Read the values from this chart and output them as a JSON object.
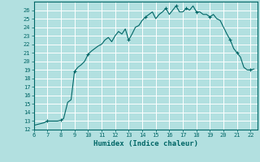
{
  "title": "",
  "xlabel": "Humidex (Indice chaleur)",
  "ylabel": "",
  "bg_color": "#b2e0e0",
  "grid_color": "#ffffff",
  "line_color": "#006666",
  "marker_color": "#006666",
  "xlim": [
    6,
    22.5
  ],
  "ylim": [
    12,
    27
  ],
  "xticks": [
    6,
    7,
    8,
    9,
    10,
    11,
    12,
    13,
    14,
    15,
    16,
    17,
    18,
    19,
    20,
    21,
    22
  ],
  "yticks": [
    12,
    13,
    14,
    15,
    16,
    17,
    18,
    19,
    20,
    21,
    22,
    23,
    24,
    25,
    26
  ],
  "x": [
    6.0,
    6.25,
    6.5,
    6.75,
    7.0,
    7.25,
    7.5,
    7.75,
    8.0,
    8.2,
    8.5,
    8.75,
    9.0,
    9.25,
    9.5,
    9.75,
    10.0,
    10.25,
    10.5,
    10.75,
    11.0,
    11.25,
    11.5,
    11.75,
    12.0,
    12.25,
    12.5,
    12.75,
    13.0,
    13.25,
    13.5,
    13.75,
    14.0,
    14.25,
    14.5,
    14.75,
    15.0,
    15.25,
    15.5,
    15.75,
    16.0,
    16.25,
    16.5,
    16.75,
    17.0,
    17.25,
    17.5,
    17.75,
    18.0,
    18.25,
    18.5,
    18.75,
    19.0,
    19.25,
    19.5,
    19.75,
    20.0,
    20.25,
    20.5,
    20.75,
    21.0,
    21.25,
    21.5,
    21.75,
    22.0,
    22.25
  ],
  "y": [
    12.5,
    12.6,
    12.7,
    12.8,
    13.0,
    13.0,
    13.0,
    13.0,
    13.1,
    13.3,
    15.2,
    15.5,
    18.8,
    19.3,
    19.6,
    20.0,
    20.8,
    21.2,
    21.5,
    21.8,
    22.0,
    22.5,
    22.8,
    22.3,
    23.0,
    23.5,
    23.2,
    23.8,
    22.5,
    23.2,
    24.0,
    24.2,
    24.8,
    25.2,
    25.5,
    25.8,
    25.0,
    25.5,
    25.8,
    26.2,
    25.5,
    26.0,
    26.5,
    25.8,
    25.8,
    26.2,
    26.0,
    26.5,
    25.8,
    25.8,
    25.5,
    25.5,
    25.2,
    25.5,
    25.0,
    24.8,
    24.0,
    23.2,
    22.5,
    21.5,
    21.0,
    20.5,
    19.3,
    19.0,
    19.0,
    19.1
  ],
  "marker_x": [
    7.0,
    8.0,
    9.0,
    10.0,
    13.0,
    14.25,
    15.75,
    16.5,
    17.25,
    18.0,
    19.0,
    20.5,
    21.0,
    22.0
  ],
  "marker_y": [
    13.0,
    13.1,
    18.8,
    20.8,
    22.5,
    25.2,
    26.2,
    26.5,
    26.2,
    25.8,
    25.2,
    22.5,
    21.0,
    19.0
  ]
}
